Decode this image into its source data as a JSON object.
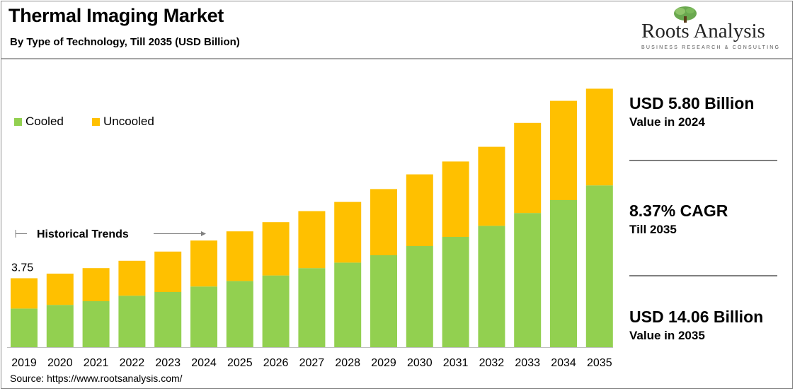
{
  "header": {
    "title": "Thermal Imaging Market",
    "subtitle": "By Type of Technology, Till 2035 (USD Billion)"
  },
  "logo": {
    "name": "Roots Analysis",
    "tagline": "BUSINESS RESEARCH & CONSULTING"
  },
  "source": "Source: https://www.rootsanalysis.com/",
  "stats": [
    {
      "value": "USD 5.80 Billion",
      "label": "Value in 2024"
    },
    {
      "value": "8.37% CAGR",
      "label": "Till 2035"
    },
    {
      "value": "USD 14.06 Billion",
      "label": "Value in 2035"
    }
  ],
  "colors": {
    "cooled": "#92d050",
    "uncooled": "#ffc000",
    "logo_tree": "#6aa84f"
  },
  "chart_data": {
    "type": "bar",
    "stacked": true,
    "categories": [
      "2019",
      "2020",
      "2021",
      "2022",
      "2023",
      "2024",
      "2025",
      "2026",
      "2027",
      "2028",
      "2029",
      "2030",
      "2031",
      "2032",
      "2033",
      "2034",
      "2035"
    ],
    "series": [
      {
        "name": "Cooled",
        "values": [
          2.1,
          2.3,
          2.5,
          2.8,
          3.0,
          3.3,
          3.6,
          3.9,
          4.3,
          4.6,
          5.0,
          5.5,
          6.0,
          6.6,
          7.3,
          8.0,
          8.8
        ]
      },
      {
        "name": "Uncooled",
        "values": [
          1.65,
          1.7,
          1.8,
          1.9,
          2.2,
          2.5,
          2.7,
          2.9,
          3.1,
          3.3,
          3.6,
          3.9,
          4.1,
          4.3,
          4.9,
          5.4,
          5.26
        ]
      }
    ],
    "data_labels": [
      {
        "category": "2019",
        "text": "3.75"
      }
    ],
    "annotation": "Historical Trends",
    "ylim": [
      0,
      16
    ],
    "legend_position": "top-left",
    "grid": false
  }
}
